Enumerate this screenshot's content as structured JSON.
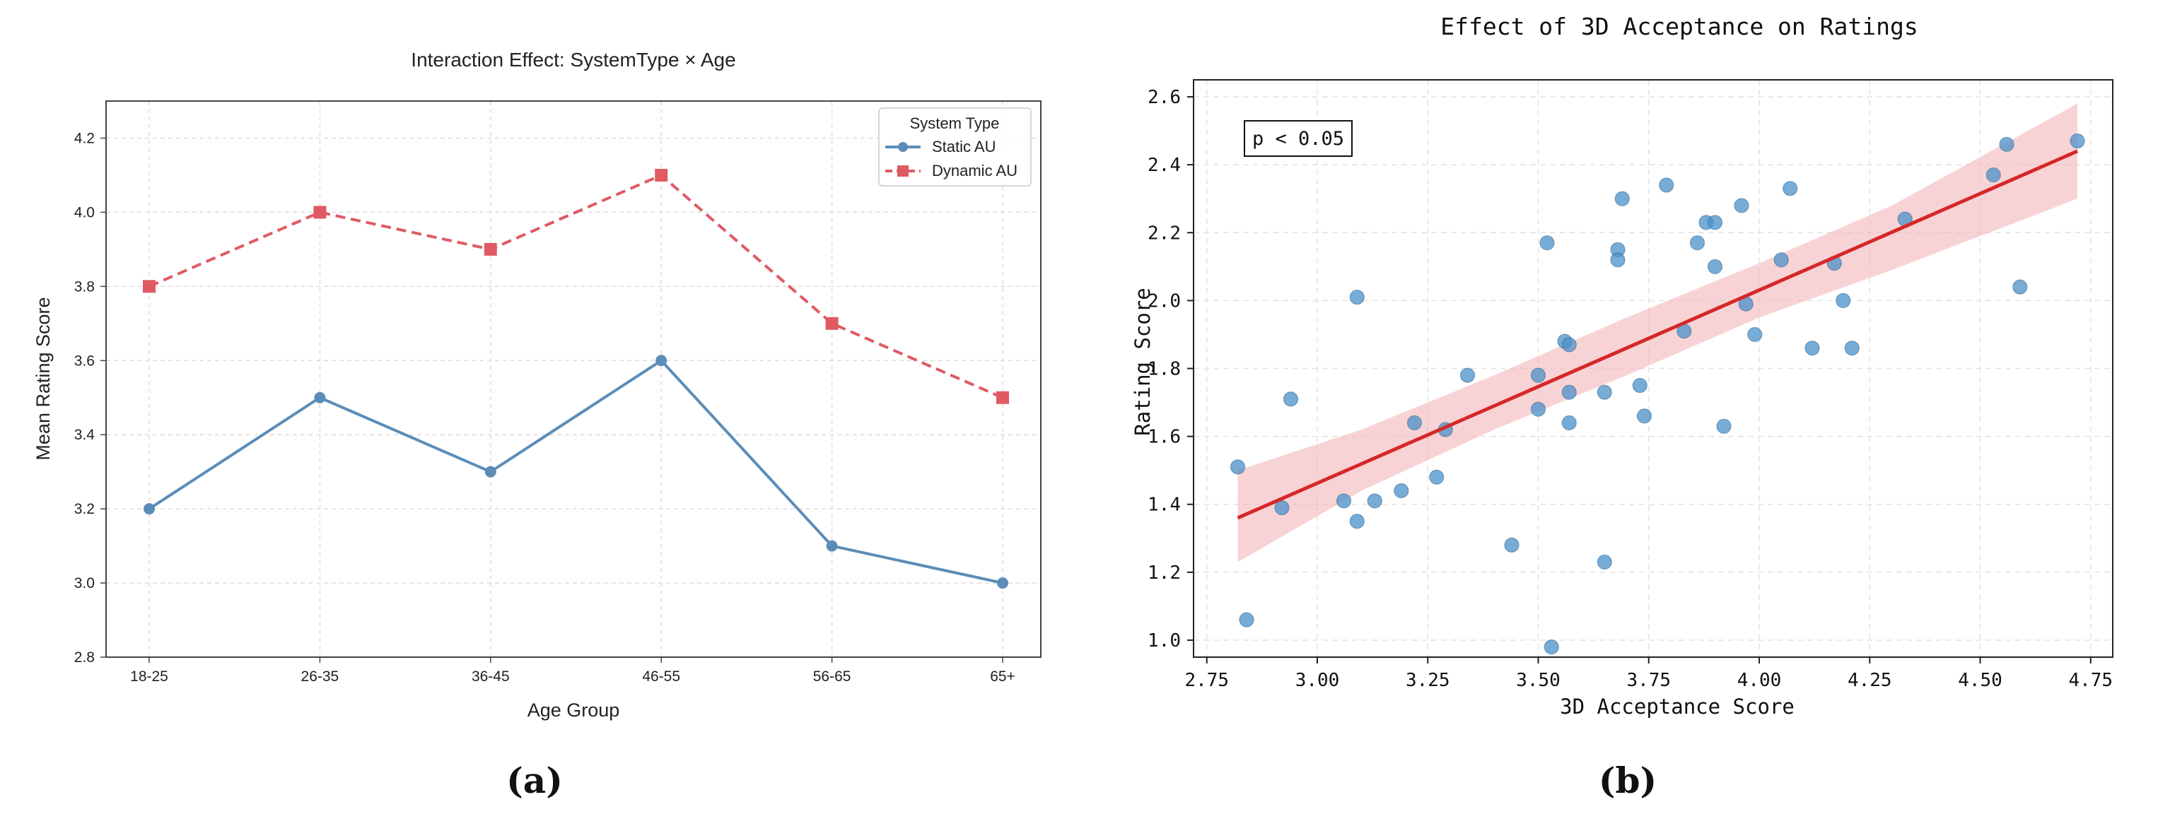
{
  "chart_data": [
    {
      "type": "line",
      "panel_label": "(a)",
      "title": "Interaction Effect: SystemType × Age",
      "xlabel": "Age Group",
      "ylabel": "Mean Rating Score",
      "categories": [
        "18-25",
        "26-35",
        "36-45",
        "46-55",
        "56-65",
        "65+"
      ],
      "ylim": [
        2.8,
        4.3
      ],
      "yticks": [
        "2.8",
        "3.0",
        "3.2",
        "3.4",
        "3.6",
        "3.8",
        "4.0",
        "4.2"
      ],
      "grid": true,
      "legend": {
        "title": "System Type",
        "placement": "top-right"
      },
      "series": [
        {
          "name": "Static AU",
          "values": [
            3.2,
            3.5,
            3.3,
            3.6,
            3.1,
            3.0
          ],
          "color": "#5b8db8",
          "marker": "circle",
          "dash": "solid"
        },
        {
          "name": "Dynamic AU",
          "values": [
            3.8,
            4.0,
            3.9,
            4.1,
            3.7,
            3.5
          ],
          "color": "#e05a64",
          "marker": "square",
          "dash": "dashed"
        }
      ]
    },
    {
      "type": "scatter",
      "panel_label": "(b)",
      "title": "Effect of 3D Acceptance on Ratings",
      "xlabel": "3D Acceptance Score",
      "ylabel": "Rating Score",
      "xlim": [
        2.72,
        4.8
      ],
      "ylim": [
        0.95,
        2.65
      ],
      "xticks": [
        "2.75",
        "3.00",
        "3.25",
        "3.50",
        "3.75",
        "4.00",
        "4.25",
        "4.50",
        "4.75"
      ],
      "yticks": [
        "1.0",
        "1.2",
        "1.4",
        "1.6",
        "1.8",
        "2.0",
        "2.2",
        "2.4",
        "2.6"
      ],
      "grid": true,
      "annotation": "p < 0.05",
      "point_color": "#4a90c8",
      "fit_color": "#d62728",
      "ci_color": "#f4b6b9",
      "regression": {
        "x": [
          2.82,
          4.72
        ],
        "y": [
          1.36,
          2.44
        ]
      },
      "ci_band": {
        "x": [
          2.82,
          3.1,
          3.4,
          3.7,
          4.0,
          4.3,
          4.72
        ],
        "lower": [
          1.23,
          1.44,
          1.62,
          1.78,
          1.95,
          2.09,
          2.3
        ],
        "upper": [
          1.5,
          1.62,
          1.78,
          1.95,
          2.11,
          2.28,
          2.58
        ]
      },
      "points": [
        [
          2.82,
          1.51
        ],
        [
          2.84,
          1.06
        ],
        [
          2.92,
          1.39
        ],
        [
          2.94,
          1.71
        ],
        [
          3.06,
          1.41
        ],
        [
          3.09,
          1.35
        ],
        [
          3.09,
          2.01
        ],
        [
          3.13,
          1.41
        ],
        [
          3.19,
          1.44
        ],
        [
          3.22,
          1.64
        ],
        [
          3.27,
          1.48
        ],
        [
          3.29,
          1.62
        ],
        [
          3.34,
          1.78
        ],
        [
          3.44,
          1.28
        ],
        [
          3.5,
          1.78
        ],
        [
          3.5,
          1.68
        ],
        [
          3.52,
          2.17
        ],
        [
          3.53,
          0.98
        ],
        [
          3.56,
          1.88
        ],
        [
          3.57,
          1.87
        ],
        [
          3.57,
          1.73
        ],
        [
          3.57,
          1.64
        ],
        [
          3.65,
          1.73
        ],
        [
          3.65,
          1.23
        ],
        [
          3.68,
          2.15
        ],
        [
          3.68,
          2.12
        ],
        [
          3.69,
          2.3
        ],
        [
          3.73,
          1.75
        ],
        [
          3.74,
          1.66
        ],
        [
          3.79,
          2.34
        ],
        [
          3.83,
          1.91
        ],
        [
          3.86,
          2.17
        ],
        [
          3.88,
          2.23
        ],
        [
          3.9,
          2.1
        ],
        [
          3.9,
          2.23
        ],
        [
          3.92,
          1.63
        ],
        [
          3.96,
          2.28
        ],
        [
          3.97,
          1.99
        ],
        [
          3.99,
          1.9
        ],
        [
          4.05,
          2.12
        ],
        [
          4.07,
          2.33
        ],
        [
          4.12,
          1.86
        ],
        [
          4.17,
          2.11
        ],
        [
          4.19,
          2.0
        ],
        [
          4.21,
          1.86
        ],
        [
          4.33,
          2.24
        ],
        [
          4.53,
          2.37
        ],
        [
          4.56,
          2.46
        ],
        [
          4.59,
          2.04
        ],
        [
          4.72,
          2.47
        ]
      ]
    }
  ]
}
